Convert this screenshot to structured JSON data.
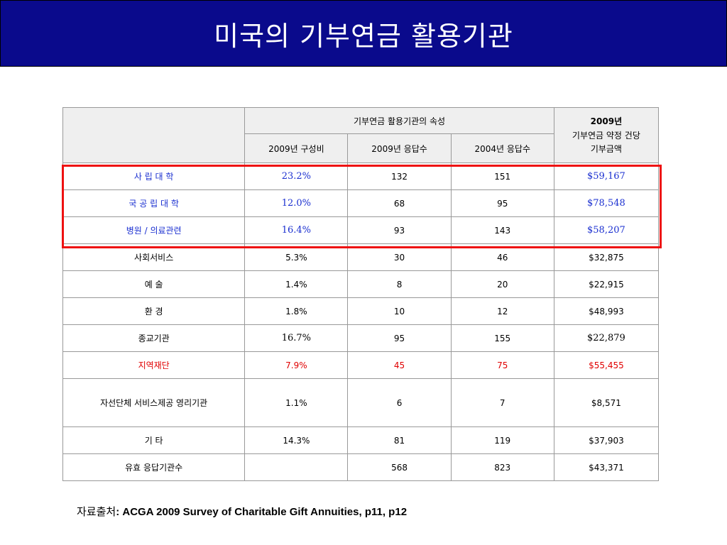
{
  "title": "미국의 기부연금 활용기관",
  "table": {
    "group_header": "기부연금 활용기관의 속성",
    "amount_header_year": "2009년",
    "amount_header_desc": "기부연금 약정 건당 기부금액",
    "sub_headers": [
      "2009년 구성비",
      "2009년 응답수",
      "2004년 응답수"
    ],
    "rows": [
      {
        "name": "사 립 대 학",
        "share": "23.2%",
        "resp2009": "132",
        "resp2004": "151",
        "amount": "$59,167"
      },
      {
        "name": "국 공 립 대 학",
        "share": "12.0%",
        "resp2009": "68",
        "resp2004": "95",
        "amount": "$78,548"
      },
      {
        "name": "병원 / 의료관련",
        "share": "16.4%",
        "resp2009": "93",
        "resp2004": "143",
        "amount": "$58,207"
      },
      {
        "name": "사회서비스",
        "share": "5.3%",
        "resp2009": "30",
        "resp2004": "46",
        "amount": "$32,875"
      },
      {
        "name": "예 술",
        "share": "1.4%",
        "resp2009": "8",
        "resp2004": "20",
        "amount": "$22,915"
      },
      {
        "name": "환 경",
        "share": "1.8%",
        "resp2009": "10",
        "resp2004": "12",
        "amount": "$48,993"
      },
      {
        "name": "종교기관",
        "share": "16.7%",
        "resp2009": "95",
        "resp2004": "155",
        "amount": "$22,879"
      },
      {
        "name": "지역재단",
        "share": "7.9%",
        "resp2009": "45",
        "resp2004": "75",
        "amount": "$55,455"
      },
      {
        "name": "자선단체 서비스제공 영리기관",
        "share": "1.1%",
        "resp2009": "6",
        "resp2004": "7",
        "amount": "$8,571"
      },
      {
        "name": "기 타",
        "share": "14.3%",
        "resp2009": "81",
        "resp2004": "119",
        "amount": "$37,903"
      },
      {
        "name": "유효 응답기관수",
        "share": "",
        "resp2009": "568",
        "resp2004": "823",
        "amount": "$43,371"
      }
    ]
  },
  "source": {
    "label": "자료출처",
    "text": ": ACGA 2009 Survey of Charitable Gift Annuities, p11, p12"
  },
  "colors": {
    "title_bar": "#0a0a8c",
    "highlight_box": "#ee1111",
    "blue_text": "#1a2fd0",
    "red_text": "#e00000",
    "header_bg": "#efefef"
  }
}
